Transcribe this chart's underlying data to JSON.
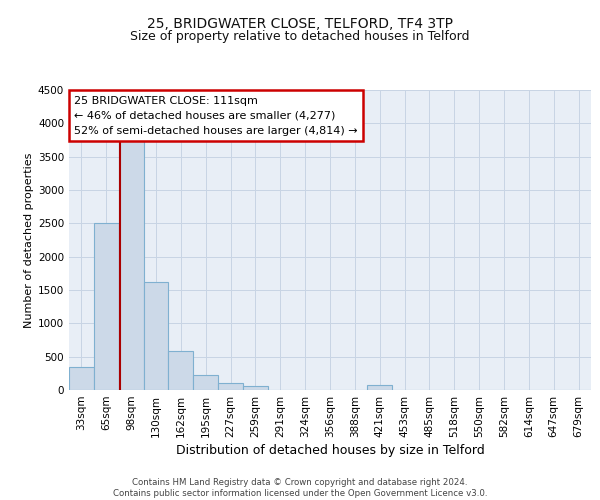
{
  "title1": "25, BRIDGWATER CLOSE, TELFORD, TF4 3TP",
  "title2": "Size of property relative to detached houses in Telford",
  "xlabel": "Distribution of detached houses by size in Telford",
  "ylabel": "Number of detached properties",
  "footer1": "Contains HM Land Registry data © Crown copyright and database right 2024.",
  "footer2": "Contains public sector information licensed under the Open Government Licence v3.0.",
  "annotation_title": "25 BRIDGWATER CLOSE: 111sqm",
  "annotation_line1": "← 46% of detached houses are smaller (4,277)",
  "annotation_line2": "52% of semi-detached houses are larger (4,814) →",
  "bar_labels": [
    "33sqm",
    "65sqm",
    "98sqm",
    "130sqm",
    "162sqm",
    "195sqm",
    "227sqm",
    "259sqm",
    "291sqm",
    "324sqm",
    "356sqm",
    "388sqm",
    "421sqm",
    "453sqm",
    "485sqm",
    "518sqm",
    "550sqm",
    "582sqm",
    "614sqm",
    "647sqm",
    "679sqm"
  ],
  "bar_values": [
    350,
    2500,
    3750,
    1620,
    580,
    230,
    100,
    60,
    0,
    0,
    0,
    0,
    70,
    0,
    0,
    0,
    0,
    0,
    0,
    0,
    0
  ],
  "bar_color": "#ccd9e8",
  "bar_edge_color": "#7fb0d0",
  "vline_pos": 1.57,
  "vline_color": "#aa0000",
  "ylim": [
    0,
    4500
  ],
  "yticks": [
    0,
    500,
    1000,
    1500,
    2000,
    2500,
    3000,
    3500,
    4000,
    4500
  ],
  "grid_color": "#c8d4e4",
  "bg_color": "#e8eef6",
  "annotation_box_color": "#ffffff",
  "annotation_box_edge": "#cc0000",
  "title_fontsize": 10,
  "subtitle_fontsize": 9,
  "axis_label_fontsize": 9,
  "ylabel_fontsize": 8,
  "tick_fontsize": 7.5,
  "annotation_fontsize": 8
}
